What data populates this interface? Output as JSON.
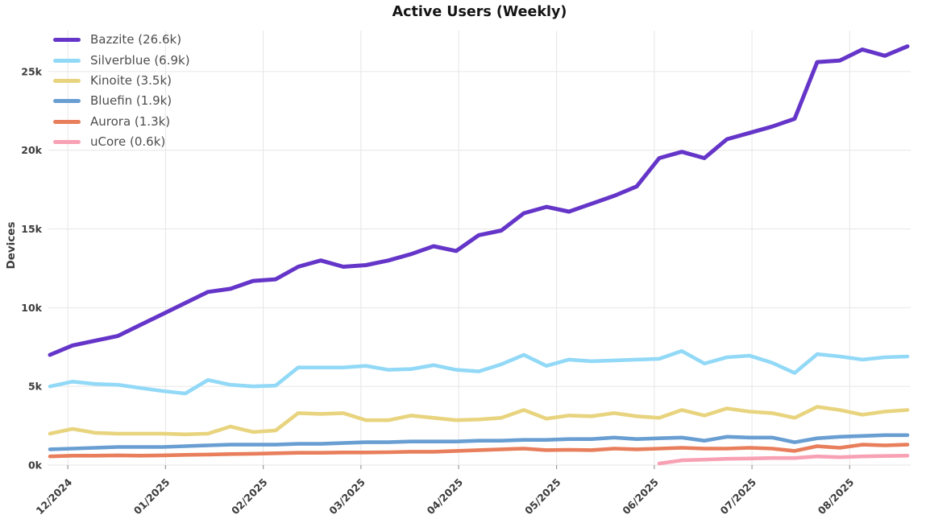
{
  "chart_data": {
    "type": "line",
    "title": "Active Users (Weekly)",
    "ylabel": "Devices",
    "grid": true,
    "legend_position": "top-left",
    "x_axis": {
      "tick_labels": [
        "12/2024",
        "01/2025",
        "02/2025",
        "03/2025",
        "04/2025",
        "05/2025",
        "06/2025",
        "07/2025",
        "08/2025"
      ],
      "tick_week_positions": [
        0.79,
        5.12,
        9.45,
        13.78,
        18.11,
        22.45,
        26.78,
        31.11,
        35.44
      ],
      "num_points": 39,
      "note": "weekly samples, late Nov 2024 through mid Aug 2025"
    },
    "y_axis": {
      "tick_labels": [
        "0k",
        "5k",
        "10k",
        "15k",
        "20k",
        "25k"
      ],
      "tick_values": [
        0,
        5,
        10,
        15,
        20,
        25
      ],
      "max": 27.6,
      "unit": "thousands of devices"
    },
    "series": [
      {
        "name": "Bazzite",
        "legend_label": "Bazzite (26.6k)",
        "current": "26.6k",
        "color": "#6435C8",
        "values": [
          7.0,
          7.6,
          7.9,
          8.2,
          8.9,
          9.6,
          10.3,
          11.0,
          11.2,
          11.7,
          11.8,
          12.6,
          13.0,
          12.6,
          12.7,
          13.0,
          13.4,
          13.9,
          13.6,
          14.6,
          14.9,
          16.0,
          16.4,
          16.1,
          16.6,
          17.1,
          17.7,
          19.5,
          19.9,
          19.5,
          20.7,
          21.1,
          21.5,
          22.0,
          25.6,
          25.7,
          26.4,
          26.0,
          26.6
        ]
      },
      {
        "name": "Silverblue",
        "legend_label": "Silverblue (6.9k)",
        "current": "6.9k",
        "color": "#92D9F7",
        "values": [
          5.0,
          5.3,
          5.15,
          5.1,
          4.9,
          4.7,
          4.55,
          5.4,
          5.1,
          5.0,
          5.05,
          6.2,
          6.2,
          6.2,
          6.3,
          6.05,
          6.1,
          6.35,
          6.05,
          5.95,
          6.4,
          7.0,
          6.3,
          6.7,
          6.6,
          6.65,
          6.7,
          6.75,
          7.25,
          6.45,
          6.85,
          6.95,
          6.5,
          5.85,
          7.05,
          6.9,
          6.7,
          6.85,
          6.9
        ]
      },
      {
        "name": "Kinoite",
        "legend_label": "Kinoite (3.5k)",
        "current": "3.5k",
        "color": "#E8D47E",
        "values": [
          2.0,
          2.3,
          2.05,
          2.0,
          2.0,
          2.0,
          1.95,
          2.0,
          2.45,
          2.1,
          2.2,
          3.3,
          3.25,
          3.3,
          2.85,
          2.85,
          3.15,
          3.0,
          2.85,
          2.9,
          3.0,
          3.5,
          2.95,
          3.15,
          3.1,
          3.3,
          3.1,
          3.0,
          3.5,
          3.15,
          3.6,
          3.4,
          3.3,
          3.0,
          3.7,
          3.5,
          3.2,
          3.4,
          3.5
        ]
      },
      {
        "name": "Bluefin",
        "legend_label": "Bluefin (1.9k)",
        "current": "1.9k",
        "color": "#699ED2",
        "values": [
          1.0,
          1.05,
          1.1,
          1.15,
          1.15,
          1.15,
          1.2,
          1.25,
          1.3,
          1.3,
          1.3,
          1.35,
          1.35,
          1.4,
          1.45,
          1.45,
          1.5,
          1.5,
          1.5,
          1.55,
          1.55,
          1.6,
          1.6,
          1.65,
          1.65,
          1.75,
          1.65,
          1.7,
          1.75,
          1.55,
          1.8,
          1.75,
          1.75,
          1.45,
          1.7,
          1.8,
          1.85,
          1.9,
          1.9
        ]
      },
      {
        "name": "Aurora",
        "legend_label": "Aurora (1.3k)",
        "current": "1.3k",
        "color": "#E87E5B",
        "values": [
          0.55,
          0.6,
          0.6,
          0.62,
          0.6,
          0.62,
          0.65,
          0.67,
          0.7,
          0.72,
          0.75,
          0.78,
          0.78,
          0.8,
          0.8,
          0.82,
          0.85,
          0.85,
          0.9,
          0.95,
          1.0,
          1.05,
          0.95,
          0.97,
          0.95,
          1.05,
          1.0,
          1.05,
          1.1,
          1.05,
          1.05,
          1.1,
          1.05,
          0.9,
          1.2,
          1.1,
          1.3,
          1.25,
          1.3
        ]
      },
      {
        "name": "uCore",
        "legend_label": "uCore (0.6k)",
        "current": "0.6k",
        "color": "#F8A1B5",
        "values": [
          null,
          null,
          null,
          null,
          null,
          null,
          null,
          null,
          null,
          null,
          null,
          null,
          null,
          null,
          null,
          null,
          null,
          null,
          null,
          null,
          null,
          null,
          null,
          null,
          null,
          null,
          null,
          0.1,
          0.3,
          0.35,
          0.4,
          0.42,
          0.45,
          0.45,
          0.55,
          0.5,
          0.55,
          0.58,
          0.6
        ]
      }
    ],
    "style": {
      "grid_color": "#e6e6e6",
      "tick_mark_color": "#9a9a9a",
      "axis_text_color": "#3c3c3c",
      "legend_text_color": "#4e4e4e",
      "background": "#ffffff"
    }
  }
}
